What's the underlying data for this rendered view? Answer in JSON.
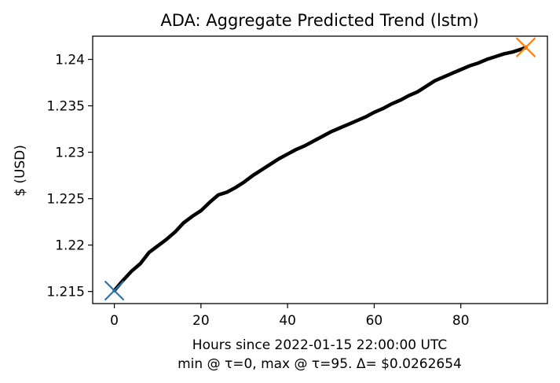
{
  "chart_data": {
    "type": "line",
    "title": "ADA: Aggregate Predicted Trend (lstm)",
    "xlabel": "Hours since 2022-01-15 22:00:00 UTC",
    "xlabel2": "min @ τ=0, max @ τ=95. Δ= $0.0262654",
    "ylabel": "$ (USD)",
    "xlim": [
      -5,
      100
    ],
    "ylim": [
      1.2137,
      1.2425
    ],
    "x_ticks": [
      0,
      20,
      40,
      60,
      80
    ],
    "y_ticks": [
      1.215,
      1.22,
      1.225,
      1.23,
      1.235,
      1.24
    ],
    "y_tick_labels": [
      "1.215",
      "1.22",
      "1.225",
      "1.23",
      "1.235",
      "1.24"
    ],
    "series": [
      {
        "color": "#000000",
        "x": [
          0,
          2,
          4,
          6,
          8,
          10,
          12,
          14,
          16,
          18,
          20,
          22,
          24,
          26,
          28,
          30,
          32,
          34,
          36,
          38,
          40,
          42,
          44,
          46,
          48,
          50,
          52,
          54,
          56,
          58,
          60,
          62,
          64,
          66,
          68,
          70,
          72,
          74,
          76,
          78,
          80,
          82,
          84,
          86,
          88,
          90,
          92,
          94,
          95
        ],
        "y": [
          1.2151,
          1.2162,
          1.2172,
          1.218,
          1.2192,
          1.2199,
          1.2206,
          1.2214,
          1.2224,
          1.2231,
          1.2237,
          1.2246,
          1.2254,
          1.2257,
          1.2262,
          1.2268,
          1.2275,
          1.2281,
          1.2287,
          1.2293,
          1.2298,
          1.2303,
          1.2307,
          1.2312,
          1.2317,
          1.2322,
          1.2326,
          1.233,
          1.2334,
          1.2338,
          1.2343,
          1.2347,
          1.2352,
          1.2356,
          1.2361,
          1.2365,
          1.2371,
          1.2377,
          1.2381,
          1.2385,
          1.2389,
          1.2393,
          1.2396,
          1.24,
          1.2403,
          1.2406,
          1.2408,
          1.2411,
          1.2413
        ]
      }
    ],
    "markers": [
      {
        "label": "min",
        "x": 0,
        "y": 1.2151,
        "color": "#1f77b4",
        "shape": "x"
      },
      {
        "label": "max",
        "x": 95,
        "y": 1.2413,
        "color": "#ff7f0e",
        "shape": "x"
      }
    ],
    "grid": false,
    "legend": "none"
  }
}
